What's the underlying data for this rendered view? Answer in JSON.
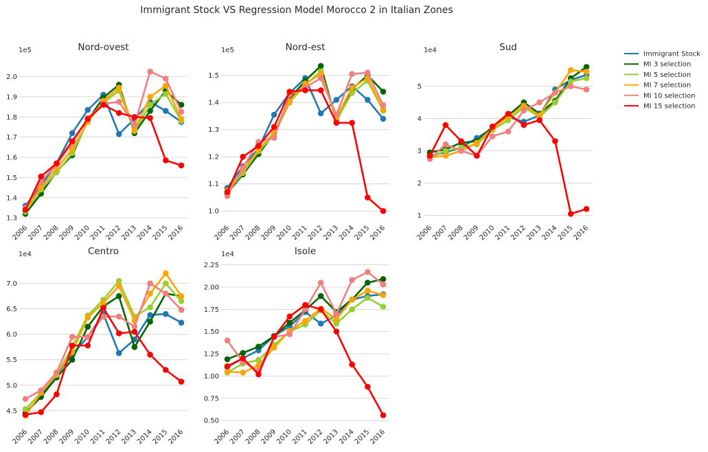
{
  "figure": {
    "title": "Immigrant Stock VS Regression Model Morocco 2 in Italian Zones"
  },
  "colors": {
    "Immigrant Stock": "#1f77b4",
    "MI 3 selection": "#006400",
    "MI 5 selection": "#9acd32",
    "MI 7 selection": "#ffa500",
    "MI 10 selection": "#f08080",
    "MI 15 selection": "#ff0000"
  },
  "legend": {
    "entries": [
      "Immigrant Stock",
      "MI 3 selection",
      "MI 5 selection",
      "MI 7 selection",
      "MI 10 selection",
      "MI 15 selection"
    ]
  },
  "chart_data": [
    {
      "type": "line",
      "title": "Nord-ovest",
      "offset_label": "1e5",
      "x": [
        "2006",
        "2007",
        "2008",
        "2009",
        "2010",
        "2011",
        "2012",
        "2013",
        "2014",
        "2015",
        "2016"
      ],
      "ylim": [
        1.28,
        2.08
      ],
      "yticks": [
        1.3,
        1.4,
        1.5,
        1.6,
        1.7,
        1.8,
        1.9,
        2.0
      ],
      "ytick_labels": [
        "1.3",
        "1.4",
        "1.5",
        "1.6",
        "1.7",
        "1.8",
        "1.9",
        "2.0"
      ],
      "series": [
        {
          "name": "Immigrant Stock",
          "values": [
            1.36,
            1.46,
            1.57,
            1.72,
            1.835,
            1.91,
            1.715,
            1.79,
            1.875,
            1.83,
            1.775
          ]
        },
        {
          "name": "MI 3 selection",
          "values": [
            1.32,
            1.42,
            1.53,
            1.61,
            1.785,
            1.895,
            1.96,
            1.72,
            1.83,
            1.93,
            1.86
          ]
        },
        {
          "name": "MI 5 selection",
          "values": [
            1.33,
            1.44,
            1.525,
            1.62,
            1.78,
            1.87,
            1.93,
            1.73,
            1.86,
            1.915,
            1.78
          ]
        },
        {
          "name": "MI 7 selection",
          "values": [
            1.34,
            1.45,
            1.545,
            1.64,
            1.775,
            1.88,
            1.945,
            1.735,
            1.9,
            1.955,
            1.79
          ]
        },
        {
          "name": "MI 10 selection",
          "values": [
            1.35,
            1.48,
            1.565,
            1.67,
            1.795,
            1.865,
            1.875,
            1.76,
            2.025,
            1.99,
            1.825
          ]
        },
        {
          "name": "MI 15 selection",
          "values": [
            1.34,
            1.505,
            1.57,
            1.68,
            1.79,
            1.86,
            1.82,
            1.8,
            1.795,
            1.585,
            1.56
          ]
        }
      ]
    },
    {
      "type": "line",
      "title": "Nord-est",
      "offset_label": "1e5",
      "x": [
        "2006",
        "2007",
        "2008",
        "2009",
        "2010",
        "2011",
        "2012",
        "2013",
        "2014",
        "2015",
        "2016"
      ],
      "ylim": [
        0.96,
        1.555
      ],
      "yticks": [
        1.0,
        1.1,
        1.2,
        1.3,
        1.4,
        1.5
      ],
      "ytick_labels": [
        "1.0",
        "1.1",
        "1.2",
        "1.3",
        "1.4",
        "1.5"
      ],
      "series": [
        {
          "name": "Immigrant Stock",
          "values": [
            1.085,
            1.165,
            1.23,
            1.355,
            1.435,
            1.49,
            1.36,
            1.41,
            1.46,
            1.41,
            1.34
          ]
        },
        {
          "name": "MI 3 selection",
          "values": [
            1.065,
            1.135,
            1.21,
            1.285,
            1.415,
            1.48,
            1.535,
            1.33,
            1.45,
            1.5,
            1.44
          ]
        },
        {
          "name": "MI 5 selection",
          "values": [
            1.07,
            1.14,
            1.22,
            1.28,
            1.4,
            1.465,
            1.515,
            1.335,
            1.435,
            1.48,
            1.37
          ]
        },
        {
          "name": "MI 7 selection",
          "values": [
            1.075,
            1.15,
            1.225,
            1.29,
            1.405,
            1.47,
            1.505,
            1.345,
            1.455,
            1.49,
            1.375
          ]
        },
        {
          "name": "MI 10 selection",
          "values": [
            1.055,
            1.16,
            1.255,
            1.27,
            1.43,
            1.455,
            1.49,
            1.355,
            1.505,
            1.51,
            1.39
          ]
        },
        {
          "name": "MI 15 selection",
          "values": [
            1.07,
            1.2,
            1.24,
            1.31,
            1.44,
            1.445,
            1.445,
            1.325,
            1.325,
            1.05,
            1.0
          ]
        }
      ]
    },
    {
      "type": "line",
      "title": "Sud",
      "offset_label": "1e4",
      "x": [
        "2006",
        "2007",
        "2008",
        "2009",
        "2010",
        "2011",
        "2012",
        "2013",
        "2014",
        "2015",
        "2016"
      ],
      "ylim": [
        0.8,
        5.8
      ],
      "yticks": [
        1,
        2,
        3,
        4,
        5
      ],
      "ytick_labels": [
        "1",
        "2",
        "3",
        "4",
        "5"
      ],
      "series": [
        {
          "name": "Immigrant Stock",
          "values": [
            2.85,
            2.95,
            3.1,
            3.4,
            3.7,
            4.05,
            3.9,
            4.1,
            4.9,
            5.2,
            5.35
          ]
        },
        {
          "name": "MI 3 selection",
          "values": [
            2.95,
            3.05,
            3.25,
            3.3,
            3.75,
            4.1,
            4.5,
            4.15,
            4.55,
            5.25,
            5.6
          ]
        },
        {
          "name": "MI 5 selection",
          "values": [
            2.8,
            3.0,
            3.1,
            3.2,
            3.65,
            3.95,
            4.35,
            4.05,
            4.5,
            5.15,
            5.25
          ]
        },
        {
          "name": "MI 7 selection",
          "values": [
            2.8,
            2.85,
            3.0,
            3.25,
            3.7,
            4.05,
            4.4,
            4.1,
            4.8,
            5.5,
            5.45
          ]
        },
        {
          "name": "MI 10 selection",
          "values": [
            2.75,
            3.2,
            3.0,
            2.85,
            3.45,
            3.6,
            4.25,
            4.5,
            4.8,
            5.0,
            4.9
          ]
        },
        {
          "name": "MI 15 selection",
          "values": [
            2.85,
            3.8,
            3.3,
            2.85,
            3.75,
            4.15,
            3.8,
            3.95,
            3.3,
            1.05,
            1.2
          ]
        }
      ]
    },
    {
      "type": "line",
      "title": "Centro",
      "offset_label": "1e4",
      "x": [
        "2006",
        "2007",
        "2008",
        "2009",
        "2010",
        "2011",
        "2012",
        "2013",
        "2014",
        "2015",
        "2016"
      ],
      "ylim": [
        4.2,
        7.4
      ],
      "yticks": [
        4.5,
        5.0,
        5.5,
        6.0,
        6.5,
        7.0
      ],
      "ytick_labels": [
        "4.5",
        "5.0",
        "5.5",
        "6.0",
        "6.5",
        "7.0"
      ],
      "series": [
        {
          "name": "Immigrant Stock",
          "values": [
            4.45,
            4.8,
            5.2,
            5.6,
            5.95,
            6.4,
            5.63,
            5.9,
            6.38,
            6.4,
            6.23
          ]
        },
        {
          "name": "MI 3 selection",
          "values": [
            4.45,
            4.77,
            5.15,
            5.5,
            6.15,
            6.55,
            6.75,
            5.75,
            6.25,
            6.8,
            6.75
          ]
        },
        {
          "name": "MI 5 selection",
          "values": [
            4.53,
            4.85,
            5.2,
            5.75,
            6.37,
            6.68,
            7.05,
            6.35,
            6.53,
            7.0,
            6.65
          ]
        },
        {
          "name": "MI 7 selection",
          "values": [
            4.4,
            4.85,
            5.22,
            5.65,
            6.33,
            6.62,
            6.95,
            6.27,
            6.8,
            7.2,
            6.75
          ]
        },
        {
          "name": "MI 10 selection",
          "values": [
            4.73,
            4.9,
            5.25,
            5.95,
            5.95,
            6.35,
            6.35,
            6.15,
            7.0,
            6.8,
            6.48
          ]
        },
        {
          "name": "MI 15 selection",
          "values": [
            4.42,
            4.47,
            4.82,
            5.78,
            5.78,
            6.52,
            6.02,
            6.05,
            5.6,
            5.3,
            5.07
          ]
        }
      ]
    },
    {
      "type": "line",
      "title": "Isole",
      "offset_label": "1e4",
      "x": [
        "2006",
        "2007",
        "2008",
        "2009",
        "2010",
        "2011",
        "2012",
        "2013",
        "2014",
        "2015",
        "2016"
      ],
      "ylim": [
        0.44,
        2.27
      ],
      "yticks": [
        0.5,
        0.75,
        1.0,
        1.25,
        1.5,
        1.75,
        2.0,
        2.25
      ],
      "ytick_labels": [
        "0.50",
        "0.75",
        "1.00",
        "1.25",
        "1.50",
        "1.75",
        "2.00",
        "2.25"
      ],
      "series": [
        {
          "name": "Immigrant Stock",
          "values": [
            1.1,
            1.2,
            1.29,
            1.45,
            1.56,
            1.72,
            1.59,
            1.68,
            1.86,
            1.9,
            1.92
          ]
        },
        {
          "name": "MI 3 selection",
          "values": [
            1.19,
            1.26,
            1.33,
            1.45,
            1.6,
            1.74,
            1.9,
            1.72,
            1.86,
            2.05,
            2.09
          ]
        },
        {
          "name": "MI 5 selection",
          "values": [
            1.04,
            1.14,
            1.18,
            1.35,
            1.5,
            1.58,
            1.74,
            1.59,
            1.75,
            1.88,
            1.78
          ]
        },
        {
          "name": "MI 7 selection",
          "values": [
            1.05,
            1.04,
            1.12,
            1.32,
            1.51,
            1.62,
            1.76,
            1.64,
            1.86,
            1.96,
            1.91
          ]
        },
        {
          "name": "MI 10 selection",
          "values": [
            1.4,
            1.16,
            1.06,
            1.44,
            1.47,
            1.75,
            2.05,
            1.7,
            2.08,
            2.17,
            2.03
          ]
        },
        {
          "name": "MI 15 selection",
          "values": [
            1.11,
            1.2,
            1.02,
            1.44,
            1.67,
            1.8,
            1.75,
            1.5,
            1.13,
            0.88,
            0.56
          ]
        }
      ]
    }
  ]
}
